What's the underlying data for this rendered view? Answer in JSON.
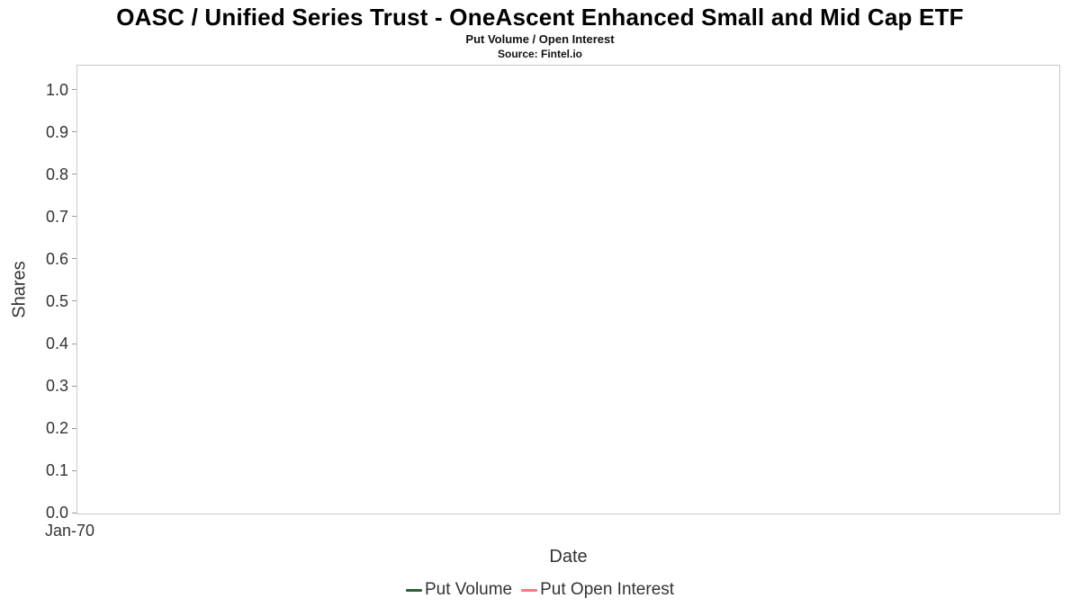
{
  "chart_data": {
    "type": "line",
    "title": "OASC / Unified Series Trust - OneAscent Enhanced Small and Mid Cap ETF",
    "subtitle": "Put Volume / Open Interest",
    "source": "Source: Fintel.io",
    "xlabel": "Date",
    "ylabel": "Shares",
    "ylim": [
      0.0,
      1.0
    ],
    "y_ticks": [
      "1.0",
      "0.9",
      "0.8",
      "0.7",
      "0.6",
      "0.5",
      "0.4",
      "0.3",
      "0.2",
      "0.1",
      "0.0"
    ],
    "x_ticks": [
      "Jan-70"
    ],
    "grid": false,
    "legend_position": "bottom",
    "series": [
      {
        "name": "Put Volume",
        "color": "#2d5f3a",
        "x": [],
        "values": []
      },
      {
        "name": "Put Open Interest",
        "color": "#f47c7c",
        "x": [],
        "values": []
      }
    ]
  }
}
